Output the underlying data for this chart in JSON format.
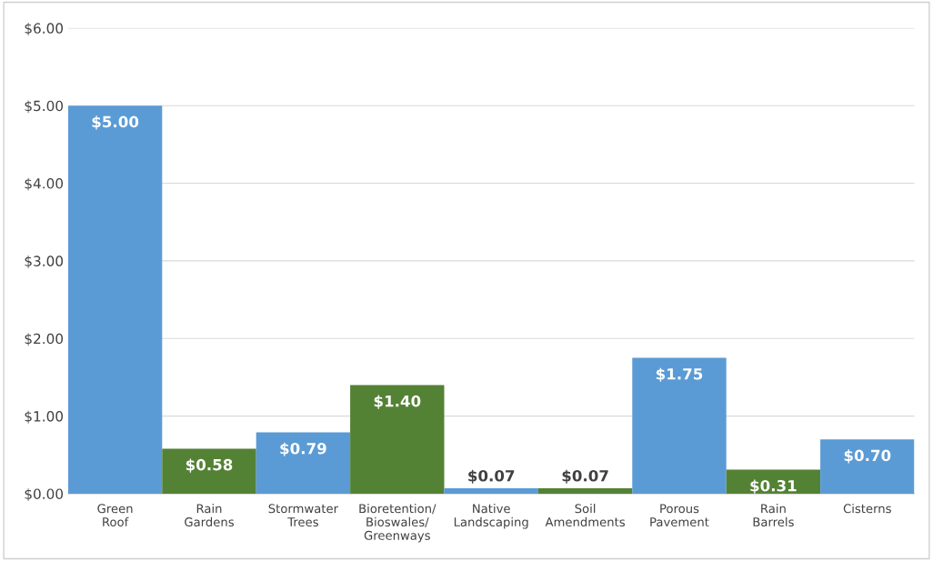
{
  "chart_data": {
    "type": "bar",
    "categories": [
      "Green\nRoof",
      "Rain\nGardens",
      "Stormwater\nTrees",
      "Bioretention/\nBioswales/\nGreenways",
      "Native\nLandscaping",
      "Soil\nAmendments",
      "Porous\nPavement",
      "Rain\nBarrels",
      "Cisterns"
    ],
    "values": [
      5.0,
      0.58,
      0.79,
      1.4,
      0.07,
      0.07,
      1.75,
      0.31,
      0.7
    ],
    "colors": [
      "#5b9bd5",
      "#548235",
      "#5b9bd5",
      "#548235",
      "#5b9bd5",
      "#548235",
      "#5b9bd5",
      "#548235",
      "#5b9bd5"
    ],
    "value_labels": [
      "$5.00",
      "$0.58",
      "$0.79",
      "$1.40",
      "$0.07",
      "$0.07",
      "$1.75",
      "$0.31",
      "$0.70"
    ],
    "ylim": [
      0,
      6
    ],
    "yticks": [
      {
        "value": 0,
        "label": "$0.00"
      },
      {
        "value": 1,
        "label": "$1.00"
      },
      {
        "value": 2,
        "label": "$2.00"
      },
      {
        "value": 3,
        "label": "$3.00"
      },
      {
        "value": 4,
        "label": "$4.00"
      },
      {
        "value": 5,
        "label": "$5.00"
      },
      {
        "value": 6,
        "label": "$6.00"
      }
    ],
    "grid": "y"
  }
}
